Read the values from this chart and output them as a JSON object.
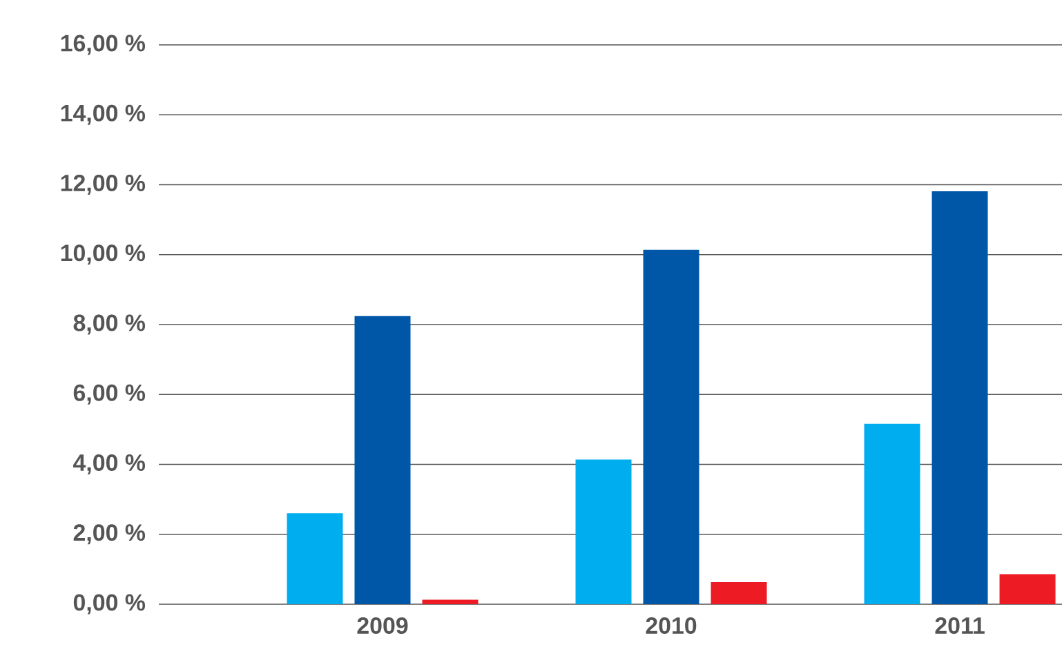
{
  "chart_data": {
    "type": "bar",
    "categories": [
      "2009",
      "2010",
      "2011"
    ],
    "series": [
      {
        "color": "#00aeef",
        "values": [
          2.6,
          4.14,
          5.16
        ]
      },
      {
        "color": "#0057a8",
        "values": [
          8.24,
          10.14,
          11.81
        ]
      },
      {
        "color": "#ed1c24",
        "values": [
          0.13,
          0.63,
          0.86
        ]
      }
    ],
    "ylim": [
      0,
      16
    ],
    "yticks": [
      {
        "value": 0,
        "label": "0,00 %"
      },
      {
        "value": 2,
        "label": "2,00 %"
      },
      {
        "value": 4,
        "label": "4,00 %"
      },
      {
        "value": 6,
        "label": "6,00 %"
      },
      {
        "value": 8,
        "label": "8,00 %"
      },
      {
        "value": 10,
        "label": "10,00 %"
      },
      {
        "value": 12,
        "label": "12,00 %"
      },
      {
        "value": 14,
        "label": "14,00 %"
      },
      {
        "value": 16,
        "label": "16,00 %"
      }
    ],
    "grid": "y"
  }
}
